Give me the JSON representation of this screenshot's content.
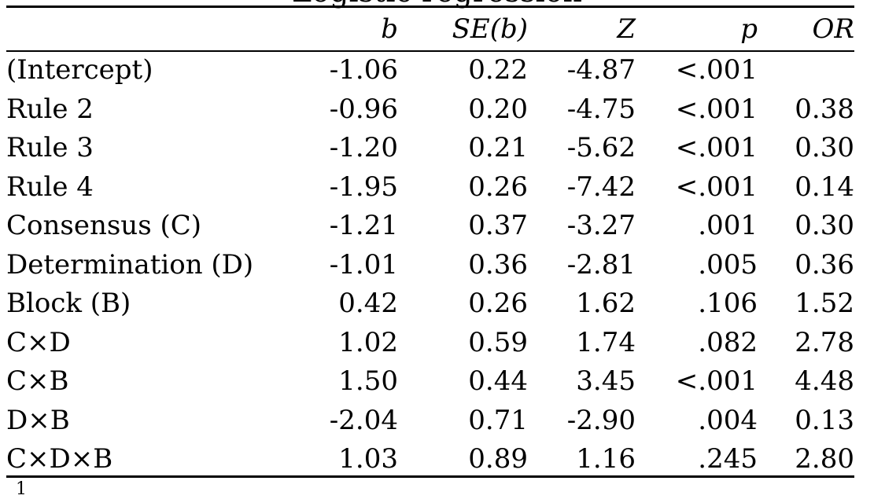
{
  "caption_fragment": "Logistic regression",
  "headers": [
    "",
    "b",
    "SE(b)",
    "Z",
    "p",
    "OR"
  ],
  "rows": [
    {
      "term": "(Intercept)",
      "b": "-1.06",
      "se": "0.22",
      "z": "-4.87",
      "p": "<.001",
      "or": ""
    },
    {
      "term": "Rule 2",
      "b": "-0.96",
      "se": "0.20",
      "z": "-4.75",
      "p": "<.001",
      "or": "0.38"
    },
    {
      "term": "Rule 3",
      "b": "-1.20",
      "se": "0.21",
      "z": "-5.62",
      "p": "<.001",
      "or": "0.30"
    },
    {
      "term": "Rule 4",
      "b": "-1.95",
      "se": "0.26",
      "z": "-7.42",
      "p": "<.001",
      "or": "0.14"
    },
    {
      "term": "Consensus (C)",
      "b": "-1.21",
      "se": "0.37",
      "z": "-3.27",
      "p": ".001",
      "or": "0.30"
    },
    {
      "term": "Determination (D)",
      "b": "-1.01",
      "se": "0.36",
      "z": "-2.81",
      "p": ".005",
      "or": "0.36"
    },
    {
      "term": "Block (B)",
      "b": "0.42",
      "se": "0.26",
      "z": "1.62",
      "p": ".106",
      "or": "1.52"
    },
    {
      "term": "C×D",
      "b": "1.02",
      "se": "0.59",
      "z": "1.74",
      "p": ".082",
      "or": "2.78"
    },
    {
      "term": "C×B",
      "b": "1.50",
      "se": "0.44",
      "z": "3.45",
      "p": "<.001",
      "or": "4.48"
    },
    {
      "term": "D×B",
      "b": "-2.04",
      "se": "0.71",
      "z": "-2.90",
      "p": ".004",
      "or": "0.13"
    },
    {
      "term": "C×D×B",
      "b": "1.03",
      "se": "0.89",
      "z": "1.16",
      "p": ".245",
      "or": "2.80"
    }
  ],
  "footnote_marker": "1"
}
